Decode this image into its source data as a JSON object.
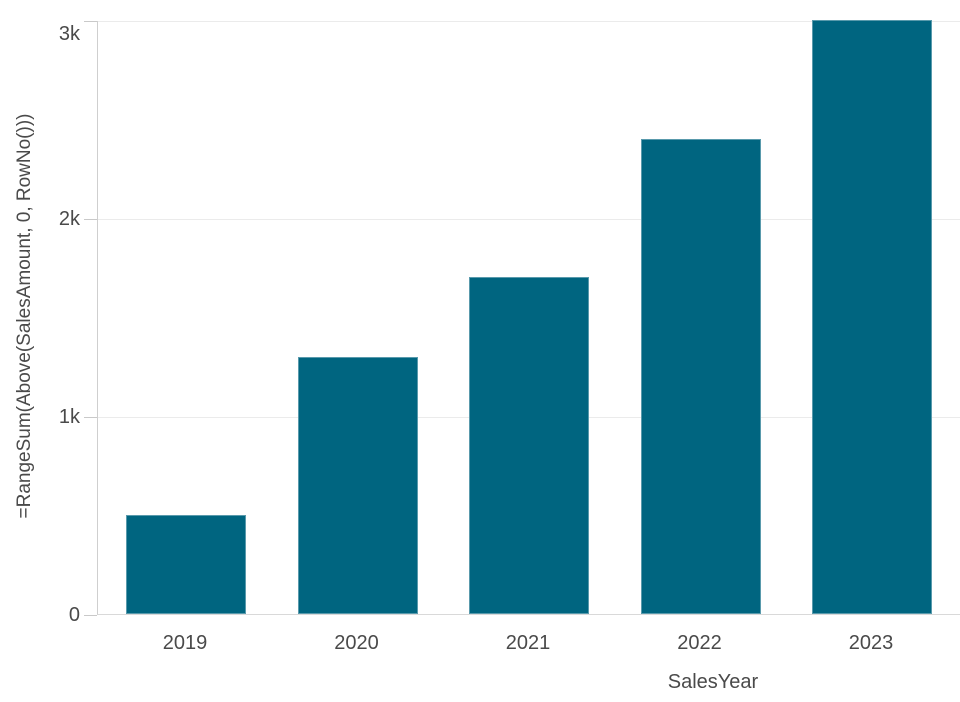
{
  "chart_data": {
    "type": "bar",
    "title": "",
    "categories": [
      "2019",
      "2020",
      "2021",
      "2022",
      "2023"
    ],
    "values": [
      500,
      1300,
      1700,
      2400,
      3000
    ],
    "xlabel": "SalesYear",
    "ylabel": "=RangeSum(Above(SalesAmount, 0, RowNo()))",
    "ylim": [
      0,
      3000
    ],
    "yticks": [
      {
        "value": 0,
        "label": "0"
      },
      {
        "value": 1000,
        "label": "1k"
      },
      {
        "value": 2000,
        "label": "2k"
      },
      {
        "value": 3000,
        "label": "3k"
      }
    ],
    "grid": true,
    "legend": false,
    "series_name": "=RangeSum(Above(SalesAmount, 0, RowNo()))"
  },
  "colors": {
    "bar": "#006580",
    "gridline": "#ebebeb",
    "axis_line": "#cfcfcf",
    "text": "#4a4a4a",
    "background": "#ffffff"
  }
}
